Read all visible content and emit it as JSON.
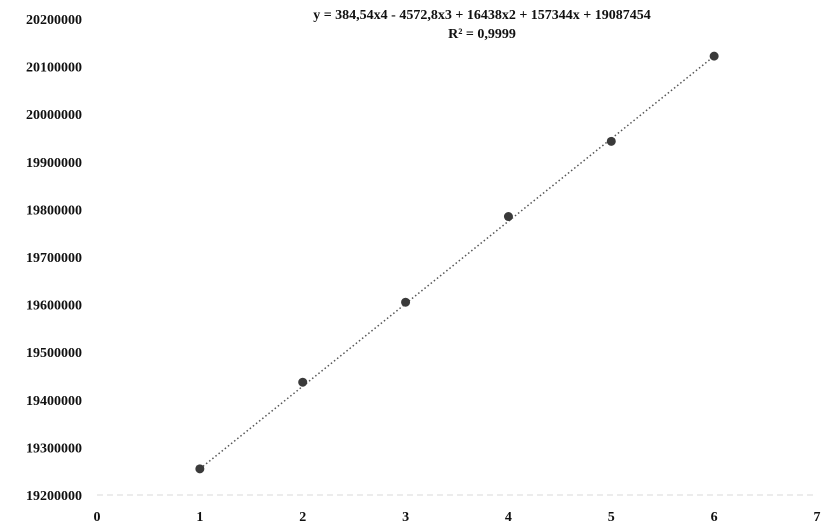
{
  "chart_data": {
    "type": "scatter",
    "title": "",
    "xlabel": "",
    "ylabel": "",
    "xlim": [
      0,
      7
    ],
    "ylim": [
      19200000,
      20200000
    ],
    "x_ticks": [
      0,
      1,
      2,
      3,
      4,
      5,
      6,
      7
    ],
    "x_tick_labels": [
      "0",
      "1",
      "2",
      "3",
      "4",
      "5",
      "6",
      "7"
    ],
    "y_ticks": [
      19200000,
      19300000,
      19400000,
      19500000,
      19600000,
      19700000,
      19800000,
      19900000,
      20000000,
      20100000,
      20200000
    ],
    "y_tick_labels": [
      "19200000",
      "19300000",
      "19400000",
      "19500000",
      "19600000",
      "19700000",
      "19800000",
      "19900000",
      "20000000",
      "20100000",
      "20200000"
    ],
    "grid": false,
    "legend": "none",
    "series": [
      {
        "x": [
          1,
          2,
          3,
          4,
          5,
          6
        ],
        "y": [
          19255000,
          19437000,
          19605000,
          19785000,
          19943000,
          20122000
        ],
        "marker_color": "#3a3a3a"
      }
    ],
    "trendline": {
      "kind": "polynomial",
      "coefficients": [
        384.54,
        -4572.8,
        16438,
        157344,
        19087454
      ],
      "style": "dotted",
      "color": "#555555"
    },
    "annotations": {
      "equation": "y = 384,54x4 - 4572,8x3 + 16438x2 + 157344x + 19087454",
      "r_squared": "R² = 0,9999"
    }
  }
}
